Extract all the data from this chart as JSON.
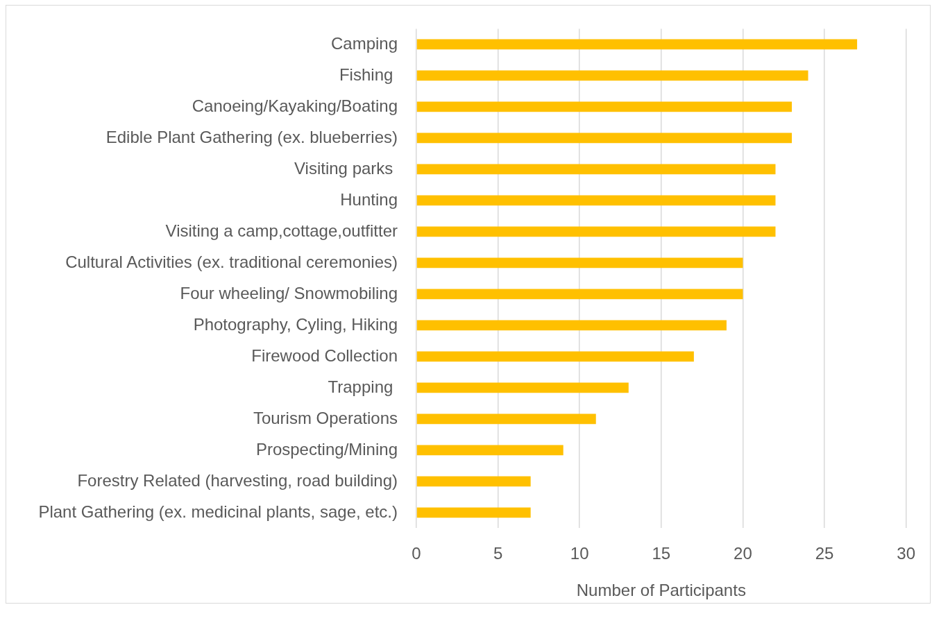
{
  "chart_data": {
    "type": "bar",
    "orientation": "horizontal",
    "categories": [
      "Camping",
      "Fishing ",
      "Canoeing/Kayaking/Boating",
      "Edible Plant Gathering (ex. blueberries)",
      "Visiting parks ",
      "Hunting",
      "Visiting a camp,cottage,outfitter",
      "Cultural Activities (ex. traditional ceremonies)",
      "Four wheeling/ Snowmobiling",
      "Photography, Cyling, Hiking",
      "Firewood Collection",
      "Trapping ",
      "Tourism Operations",
      "Prospecting/Mining",
      "Forestry Related (harvesting, road building)",
      "Plant Gathering (ex. medicinal plants, sage, etc.)"
    ],
    "values": [
      27,
      24,
      23,
      23,
      22,
      22,
      22,
      20,
      20,
      19,
      17,
      13,
      11,
      9,
      7,
      7
    ],
    "color": "#ffc000",
    "xlim": [
      0,
      30
    ],
    "xticks": [
      0,
      5,
      10,
      15,
      20,
      25,
      30
    ],
    "xlabel": "Number of Participants",
    "grid": "x"
  }
}
